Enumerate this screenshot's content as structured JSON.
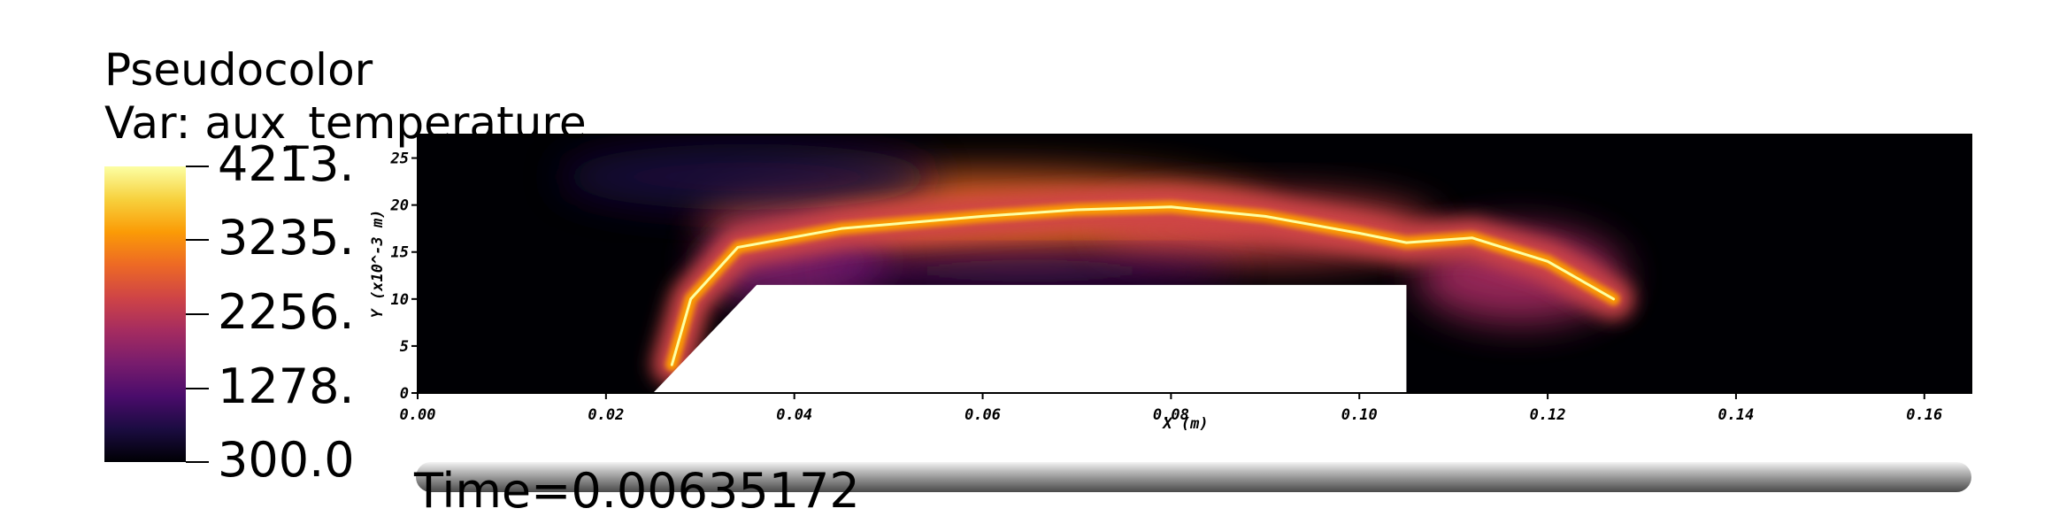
{
  "legend": {
    "title_line1": "Pseudocolor",
    "title_line2": "Var: aux_temperature",
    "max_label": "4213.",
    "tick_labels": [
      "4213.",
      "3235.",
      "2256.",
      "1278.",
      "300.0"
    ],
    "tick_values": [
      4213,
      3235,
      2256,
      1278,
      300
    ],
    "colormap": [
      "#000004",
      "#1b0c41",
      "#4a0c6b",
      "#781c6d",
      "#a52c60",
      "#cf4446",
      "#ed6925",
      "#fb9b06",
      "#f7d13d",
      "#fcffa4"
    ]
  },
  "time": {
    "label": "Time=0.00635172",
    "value": 0.00635172
  },
  "chart_data": {
    "type": "heatmap",
    "title": "Pseudocolor",
    "variable": "aux_temperature",
    "xlabel": "X (m)",
    "ylabel": "Y (x10^-3 m)",
    "xlim": [
      0.0,
      0.165
    ],
    "ylim": [
      0,
      27.5
    ],
    "x_ticks": [
      0.0,
      0.02,
      0.04,
      0.06,
      0.08,
      0.1,
      0.12,
      0.14,
      0.16
    ],
    "x_tick_labels": [
      "0.00",
      "0.02",
      "0.04",
      "0.06",
      "0.08",
      "0.10",
      "0.12",
      "0.14",
      "0.16"
    ],
    "y_ticks": [
      0,
      5,
      10,
      15,
      20,
      25
    ],
    "y_tick_labels": [
      "0",
      "5",
      "10",
      "15",
      "20",
      "25"
    ],
    "value_range": [
      300.0,
      4213.0
    ],
    "obstacle_polygon": [
      [
        0.025,
        0
      ],
      [
        0.036,
        11.5
      ],
      [
        0.105,
        11.5
      ],
      [
        0.105,
        0
      ]
    ],
    "flame_sheet": [
      [
        0.027,
        3
      ],
      [
        0.029,
        10
      ],
      [
        0.034,
        15.5
      ],
      [
        0.045,
        17.5
      ],
      [
        0.06,
        18.8
      ],
      [
        0.07,
        19.5
      ],
      [
        0.08,
        19.8
      ],
      [
        0.09,
        18.8
      ],
      [
        0.1,
        17
      ],
      [
        0.105,
        16
      ],
      [
        0.112,
        16.5
      ],
      [
        0.12,
        14
      ],
      [
        0.127,
        10
      ]
    ],
    "hot_regions": [
      {
        "x": 0.06,
        "y": 19,
        "rx": 0.03,
        "ry": 4.5,
        "temperature": 2700
      },
      {
        "x": 0.09,
        "y": 17.5,
        "rx": 0.018,
        "ry": 3.5,
        "temperature": 2400
      },
      {
        "x": 0.117,
        "y": 12.5,
        "rx": 0.011,
        "ry": 5,
        "temperature": 2200
      },
      {
        "x": 0.04,
        "y": 14,
        "rx": 0.01,
        "ry": 5,
        "temperature": 1400
      },
      {
        "x": 0.065,
        "y": 13,
        "rx": 0.022,
        "ry": 1.6,
        "temperature": 1300
      },
      {
        "x": 0.035,
        "y": 23,
        "rx": 0.02,
        "ry": 3.5,
        "temperature": 900
      }
    ]
  }
}
